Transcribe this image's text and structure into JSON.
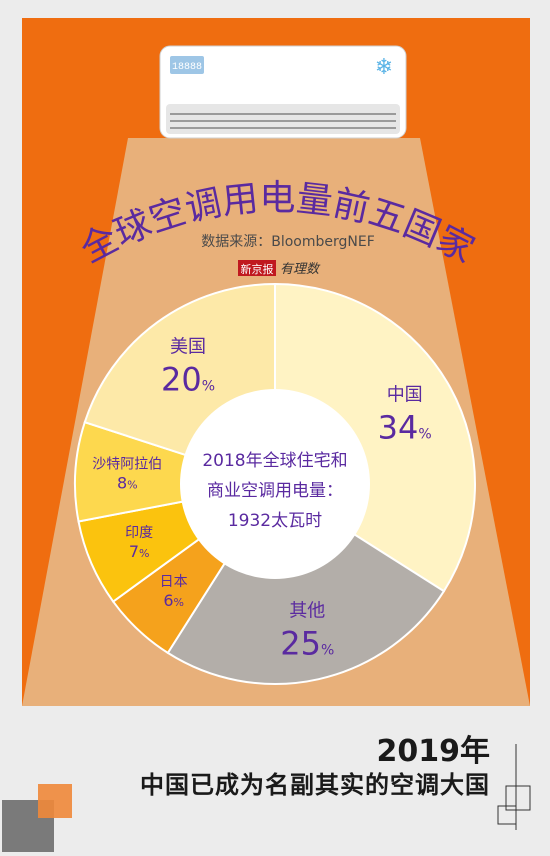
{
  "poster": {
    "title": "全球空调用电量前五国家",
    "source": "数据来源：BloombergNEF",
    "brand_box": "新京报",
    "brand_text": "有理数",
    "ac_display": "18888",
    "snowflake": "❄",
    "center_line1": "2018年全球住宅和",
    "center_line2": "商业空调用电量：",
    "center_line3": "1932太瓦时",
    "bottom_year": "2019年",
    "bottom_subtitle": "中国已成为名副其实的空调大国"
  },
  "colors": {
    "orange": "#ef6d10",
    "beam": "#e8b07a",
    "purple": "#5a2aa0",
    "gray_bg": "#ececec"
  },
  "chart_data": {
    "type": "pie",
    "variant": "donut",
    "title": "2018年全球住宅和商业空调用电量：1932太瓦时",
    "slices": [
      {
        "label": "中国",
        "value": 34,
        "display": "34",
        "color": "#fff3c4"
      },
      {
        "label": "其他",
        "value": 25,
        "display": "25",
        "color": "#b3aea9"
      },
      {
        "label": "日本",
        "value": 6,
        "display": "6",
        "color": "#f5a21c"
      },
      {
        "label": "印度",
        "value": 7,
        "display": "7",
        "color": "#fbc30e"
      },
      {
        "label": "沙特阿拉伯",
        "value": 8,
        "display": "8",
        "color": "#fdd84e"
      },
      {
        "label": "美国",
        "value": 20,
        "display": "20",
        "color": "#fde9a8"
      }
    ],
    "unit": "%"
  }
}
